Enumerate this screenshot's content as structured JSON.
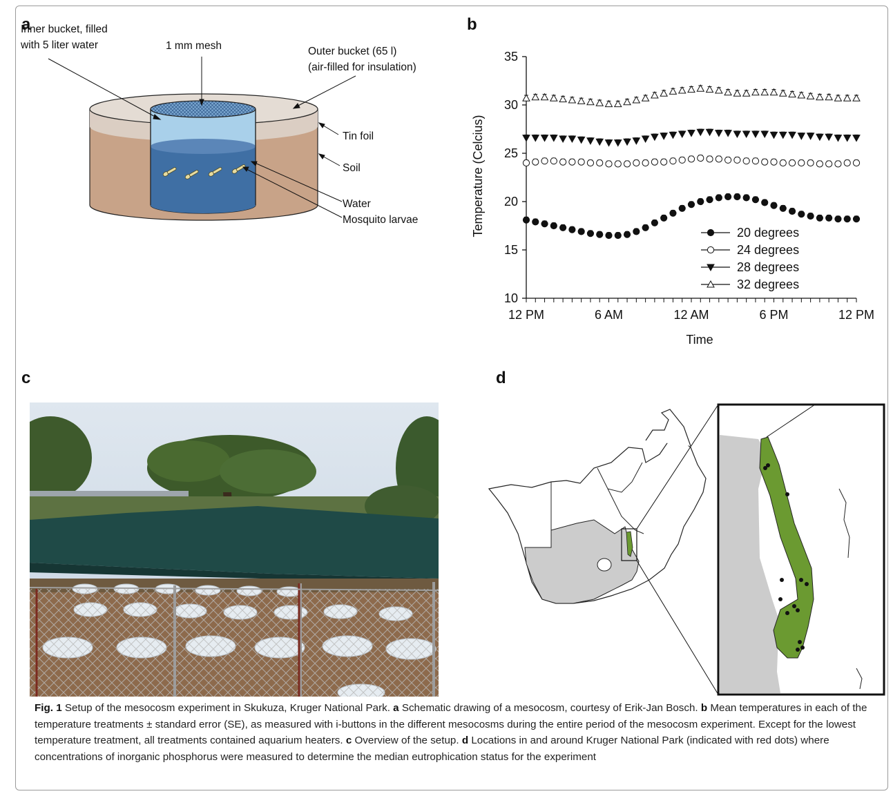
{
  "panel_labels": {
    "a": "a",
    "b": "b",
    "c": "c",
    "d": "d"
  },
  "schematic": {
    "inner_bucket": "Inner bucket, filled",
    "inner_bucket_2": "with 5 liter water",
    "mesh": "1 mm mesh",
    "outer_bucket": "Outer bucket (65 l)",
    "outer_bucket_2": "(air-filled for insulation)",
    "tin_foil": "Tin foil",
    "soil": "Soil",
    "water": "Water",
    "larvae": "Mosquito larvae"
  },
  "chart_data": {
    "type": "line",
    "xlabel": "Time",
    "ylabel": "Temperature (Celcius)",
    "ylim": [
      10,
      35
    ],
    "y_ticks": [
      "10",
      "15",
      "20",
      "25",
      "30",
      "35"
    ],
    "x_tick_labels": [
      "12 PM",
      "6 AM",
      "12 AM",
      "6 PM",
      "12 PM"
    ],
    "x_tick_positions": [
      0,
      18,
      36,
      54,
      72
    ],
    "x": [
      0,
      2,
      4,
      6,
      8,
      10,
      12,
      14,
      16,
      18,
      20,
      22,
      24,
      26,
      28,
      30,
      32,
      34,
      36,
      38,
      40,
      42,
      44,
      46,
      48,
      50,
      52,
      54,
      56,
      58,
      60,
      62,
      64,
      66,
      68,
      70,
      72
    ],
    "legend_position": "lower-right",
    "series": [
      {
        "name": "20 degrees",
        "marker": "filled-circle",
        "values": [
          18.1,
          17.9,
          17.7,
          17.5,
          17.3,
          17.1,
          16.9,
          16.7,
          16.6,
          16.5,
          16.5,
          16.6,
          16.9,
          17.3,
          17.8,
          18.3,
          18.8,
          19.3,
          19.7,
          20.0,
          20.2,
          20.4,
          20.5,
          20.5,
          20.4,
          20.2,
          19.9,
          19.6,
          19.3,
          19.0,
          18.7,
          18.5,
          18.3,
          18.3,
          18.2,
          18.2,
          18.2
        ]
      },
      {
        "name": "24 degrees",
        "marker": "open-circle",
        "values": [
          24.0,
          24.1,
          24.2,
          24.2,
          24.1,
          24.1,
          24.1,
          24.0,
          24.0,
          23.9,
          23.9,
          23.9,
          24.0,
          24.0,
          24.1,
          24.1,
          24.2,
          24.3,
          24.4,
          24.5,
          24.4,
          24.4,
          24.3,
          24.3,
          24.2,
          24.2,
          24.1,
          24.1,
          24.0,
          24.0,
          24.0,
          24.0,
          23.9,
          23.9,
          23.9,
          24.0,
          24.0
        ]
      },
      {
        "name": "28 degrees",
        "marker": "filled-triangle-down",
        "values": [
          26.6,
          26.6,
          26.6,
          26.6,
          26.5,
          26.5,
          26.4,
          26.3,
          26.2,
          26.1,
          26.1,
          26.2,
          26.3,
          26.5,
          26.7,
          26.8,
          26.9,
          27.0,
          27.1,
          27.2,
          27.2,
          27.1,
          27.1,
          27.0,
          27.0,
          27.0,
          27.0,
          26.9,
          26.9,
          26.9,
          26.8,
          26.8,
          26.7,
          26.7,
          26.6,
          26.6,
          26.6
        ]
      },
      {
        "name": "32 degrees",
        "marker": "open-triangle-up",
        "values": [
          30.7,
          30.8,
          30.8,
          30.7,
          30.6,
          30.5,
          30.4,
          30.3,
          30.2,
          30.1,
          30.1,
          30.3,
          30.5,
          30.7,
          31.0,
          31.2,
          31.4,
          31.5,
          31.6,
          31.7,
          31.6,
          31.5,
          31.3,
          31.2,
          31.2,
          31.3,
          31.3,
          31.3,
          31.2,
          31.1,
          31.0,
          30.9,
          30.8,
          30.8,
          30.7,
          30.7,
          30.7
        ]
      }
    ],
    "error": 0.3
  },
  "caption": {
    "fig_label": "Fig. 1",
    "intro": "  Setup of the mesocosm experiment in Skukuza, Kruger National Park. ",
    "a_label": "a",
    "a_text": " Schematic drawing of a mesocosm, courtesy of Erik-Jan Bosch. ",
    "b_label": "b",
    "b_text": " Mean temperatures in each of the temperature treatments ± standard error (SE), as measured with i-buttons in the different mesocosms during the entire period of the mesocosm experiment. Except for the lowest temperature treatment, all treatments contained aquarium heaters. ",
    "c_label": "c",
    "c_text": " Overview of the setup. ",
    "d_label": "d",
    "d_text": " Locations in and around Kruger National Park (indicated with red dots) where concentrations of inorganic phosphorus were measured to determine the median eutrophication status for the experiment"
  },
  "colors": {
    "soil": "#c8a388",
    "tin_foil": "#dcd0c6",
    "water": "#3f6fa4",
    "inner_bucket": "#a9d0ea",
    "park_green": "#6b9a31",
    "southafrica_gray": "#cccccc",
    "sky": "#c9d7e4",
    "shade_net": "#1e4a48"
  }
}
